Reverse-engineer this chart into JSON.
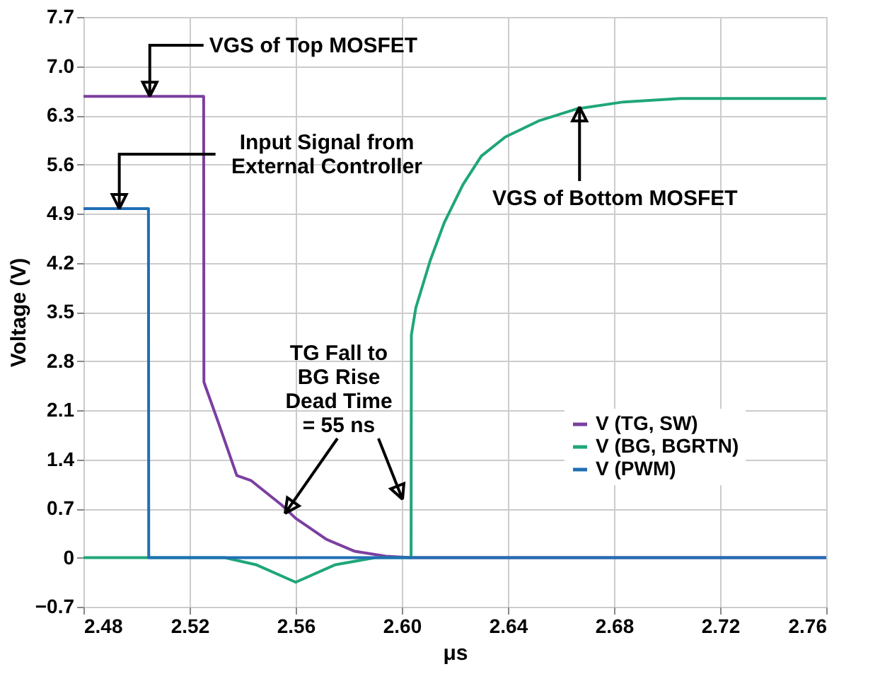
{
  "chart_data": {
    "type": "line",
    "xlabel": "μs",
    "ylabel": "Voltage (V)",
    "xlim": [
      2.48,
      2.76
    ],
    "xticks": [
      2.48,
      2.52,
      2.56,
      {
        "value": 2.6,
        "label": "2.60"
      },
      2.64,
      2.68,
      2.72,
      2.76
    ],
    "ylim": [
      -0.7,
      7.7
    ],
    "yticks": [
      -0.7,
      {
        "value": 0,
        "label": "0"
      },
      0.7,
      1.4,
      2.1,
      2.8,
      3.5,
      4.2,
      4.9,
      5.6,
      6.3,
      {
        "value": 7,
        "label": "7.0"
      },
      7.7
    ],
    "grid": true,
    "legend": "bottom right",
    "line_style": "solid",
    "marker": "none",
    "series": [
      {
        "name": "V (TG, SW)",
        "color": "#7b3fa0",
        "x": [
          2.48,
          2.5253,
          2.5254,
          2.5307,
          2.5378,
          2.5431,
          2.5547,
          2.56,
          2.5716,
          2.5823,
          2.594,
          2.6035,
          2.76
        ],
        "values": [
          6.57,
          6.57,
          2.5,
          1.94,
          1.17,
          1.1,
          0.75,
          0.56,
          0.26,
          0.09,
          0.02,
          0,
          0
        ]
      },
      {
        "name": "V (BG, BGRTN)",
        "color": "#1fa67a",
        "x": [
          2.48,
          2.5333,
          2.545,
          2.56,
          2.575,
          2.59,
          2.6035,
          2.6036,
          2.6053,
          2.6107,
          2.616,
          2.623,
          2.63,
          2.639,
          2.6516,
          2.6658,
          2.6836,
          2.705,
          2.76
        ],
        "values": [
          0,
          0,
          -0.1,
          -0.35,
          -0.1,
          0,
          0,
          3.17,
          3.56,
          4.23,
          4.77,
          5.31,
          5.72,
          5.99,
          6.22,
          6.39,
          6.49,
          6.54,
          6.54
        ]
      },
      {
        "name": "V (PWM)",
        "color": "#1f6fb5",
        "x": [
          2.48,
          2.5045,
          2.5046,
          2.76
        ],
        "values": [
          4.97,
          4.97,
          0,
          0
        ]
      }
    ],
    "annotations": [
      {
        "text": "VGS of Top MOSFET",
        "x": 2.505,
        "y": 6.57
      },
      {
        "text": "Input Signal from\nExternal Controller",
        "x": 2.4935,
        "y": 4.97
      },
      {
        "text": "VGS of Bottom MOSFET",
        "x": 2.667,
        "y": 6.42
      },
      {
        "text": "TG Fall to\nBG Rise\nDead Time\n= 55 ns",
        "x": 2.556,
        "y": 0.63
      }
    ]
  }
}
